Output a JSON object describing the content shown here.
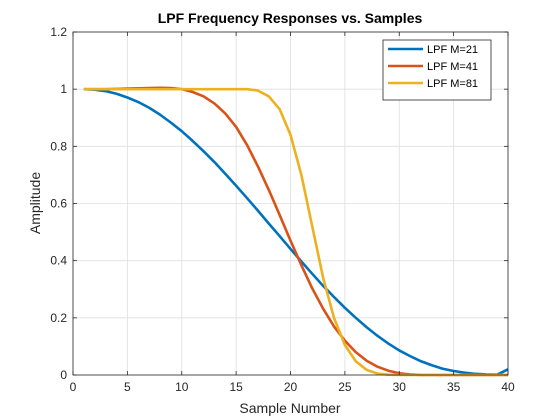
{
  "chart_data": {
    "type": "line",
    "title": "LPF Frequency Responses vs. Samples",
    "xlabel": "Sample Number",
    "ylabel": "Amplitude",
    "xlim": [
      0,
      40
    ],
    "ylim": [
      0,
      1.2
    ],
    "xticks": [
      0,
      5,
      10,
      15,
      20,
      25,
      30,
      35,
      40
    ],
    "yticks": [
      0,
      0.2,
      0.4,
      0.6,
      0.8,
      1,
      1.2
    ],
    "xtick_labels": [
      "0",
      "5",
      "10",
      "15",
      "20",
      "25",
      "30",
      "35",
      "40"
    ],
    "ytick_labels": [
      "0",
      "0.2",
      "0.4",
      "0.6",
      "0.8",
      "1",
      "1.2"
    ],
    "grid": true,
    "legend_position": "top-right",
    "x": [
      1,
      2,
      3,
      4,
      5,
      6,
      7,
      8,
      9,
      10,
      11,
      12,
      13,
      14,
      15,
      16,
      17,
      18,
      19,
      20,
      21,
      22,
      23,
      24,
      25,
      26,
      27,
      28,
      29,
      30,
      31,
      32,
      33,
      34,
      35,
      36,
      37,
      38,
      39,
      40
    ],
    "series": [
      {
        "name": "LPF M=21",
        "color": "#0072BD",
        "values": [
          1.0,
          0.998,
          0.993,
          0.984,
          0.971,
          0.955,
          0.935,
          0.911,
          0.883,
          0.853,
          0.819,
          0.783,
          0.745,
          0.704,
          0.662,
          0.619,
          0.575,
          0.53,
          0.486,
          0.441,
          0.397,
          0.354,
          0.312,
          0.273,
          0.235,
          0.2,
          0.167,
          0.137,
          0.11,
          0.086,
          0.066,
          0.048,
          0.034,
          0.022,
          0.014,
          0.008,
          0.004,
          0.002,
          0.001,
          0.02
        ]
      },
      {
        "name": "LPF M=41",
        "color": "#D95319",
        "values": [
          1.0,
          1.0,
          1.0,
          1.001,
          1.002,
          1.003,
          1.004,
          1.005,
          1.004,
          1.0,
          0.99,
          0.975,
          0.95,
          0.915,
          0.868,
          0.805,
          0.73,
          0.648,
          0.56,
          0.47,
          0.384,
          0.303,
          0.232,
          0.17,
          0.12,
          0.08,
          0.05,
          0.029,
          0.015,
          0.006,
          0.002,
          0.0,
          0.0,
          0.0,
          0.0,
          0.0,
          0.0,
          0.0,
          0.0,
          0.0
        ]
      },
      {
        "name": "LPF M=81",
        "color": "#EDB120",
        "values": [
          1.0,
          1.0,
          1.0,
          1.0,
          1.0,
          1.0,
          1.0,
          1.0,
          1.0,
          1.0,
          1.0,
          1.0,
          1.0,
          1.0,
          1.0,
          1.0,
          0.995,
          0.975,
          0.93,
          0.84,
          0.7,
          0.52,
          0.34,
          0.2,
          0.105,
          0.048,
          0.018,
          0.005,
          0.001,
          0.0,
          0.0,
          0.0,
          0.0,
          0.0,
          0.0,
          0.0,
          0.0,
          0.0,
          0.0,
          0.0
        ]
      }
    ]
  }
}
